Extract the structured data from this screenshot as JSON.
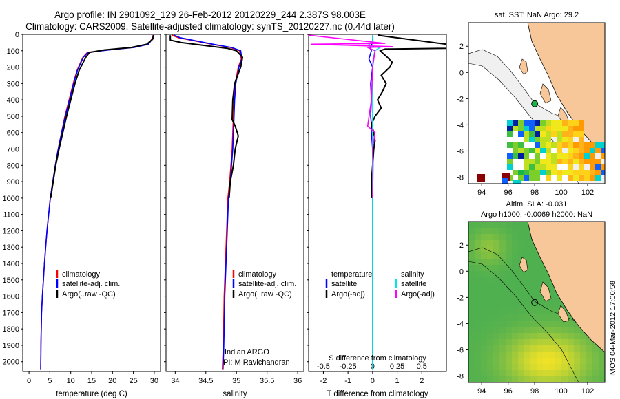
{
  "title": {
    "line1": "Argo profile: IN 2901092_129 26-Feb-2012 20120229_244 2.387S 98.003E",
    "line2": "Climatology: CARS2009. Satellite-adjusted climatology: synTS_20120227.nc (0.44d later)"
  },
  "colors": {
    "climatology": "#ff0000",
    "satellite": "#0000ff",
    "argo": "#000000",
    "salinity_satellite": "#00e5e5",
    "salinity_argo": "#ff00ff",
    "land": "#f7c79a",
    "bathy": "#f0f0f0",
    "ocean_sla": "#4fb04f"
  },
  "stamp": "IMOS 04-Mar-2012 17:00:58",
  "chart_data": [
    {
      "id": "temperature",
      "type": "line",
      "xlabel": "temperature (deg C)",
      "ylabel": "",
      "xlim": [
        -1.5,
        31.5
      ],
      "ylim": [
        2060,
        0
      ],
      "xticks": [
        "0",
        "5",
        "10",
        "15",
        "20",
        "25",
        "30"
      ],
      "yticks": [
        "0",
        "100",
        "200",
        "300",
        "400",
        "500",
        "600",
        "700",
        "800",
        "900",
        "1000",
        "1100",
        "1200",
        "1300",
        "1400",
        "1500",
        "1600",
        "1700",
        "1800",
        "1900",
        "2000"
      ],
      "legend": [
        "climatology",
        "satellite-adj. clim.",
        "Argo(..raw -QC)"
      ],
      "series": [
        {
          "name": "climatology",
          "color": "#ff0000",
          "x": [
            29.7,
            29.4,
            28.5,
            25,
            19,
            14,
            12.9,
            12.2,
            11.5,
            10.6,
            9.6,
            8.6,
            7.8,
            7,
            6.3,
            5.7,
            5.1,
            4.7,
            4.3,
            4,
            3.7,
            3.45,
            3.2,
            3,
            2.85,
            2.8
          ],
          "y": [
            5,
            30,
            60,
            80,
            95,
            110,
            140,
            180,
            220,
            300,
            400,
            500,
            600,
            700,
            800,
            900,
            1000,
            1100,
            1200,
            1300,
            1400,
            1500,
            1600,
            1700,
            1900,
            2050
          ]
        },
        {
          "name": "satellite-adj. clim.",
          "color": "#0000ff",
          "x": [
            29.8,
            29.5,
            28.6,
            25.2,
            19.2,
            14.2,
            13,
            12.3,
            11.6,
            10.7,
            9.7,
            8.7,
            7.8,
            7,
            6.3,
            5.7,
            5.1,
            4.7,
            4.3,
            4,
            3.7,
            3.45,
            3.2,
            3,
            2.85,
            2.8
          ],
          "y": [
            5,
            30,
            60,
            80,
            95,
            110,
            140,
            180,
            220,
            300,
            400,
            500,
            600,
            700,
            800,
            900,
            1000,
            1100,
            1200,
            1300,
            1400,
            1500,
            1600,
            1700,
            1900,
            2050
          ]
        },
        {
          "name": "Argo(..raw -QC)",
          "color": "#000000",
          "x": [
            29.9,
            29.6,
            28.2,
            24.5,
            18,
            14.5,
            13.6,
            12.8,
            12,
            11,
            10,
            9,
            8.1,
            7.2,
            6.4,
            5.8,
            5.2
          ],
          "y": [
            5,
            30,
            60,
            80,
            95,
            110,
            140,
            180,
            220,
            300,
            400,
            500,
            600,
            700,
            800,
            900,
            1000
          ]
        }
      ]
    },
    {
      "id": "salinity",
      "type": "line",
      "xlabel": "salinity",
      "ylabel": "",
      "xlim": [
        33.85,
        36.1
      ],
      "ylim": [
        2060,
        0
      ],
      "xticks": [
        "34",
        "34.5",
        "35",
        "35.5",
        "36"
      ],
      "legend": [
        "climatology",
        "satellite-adj. clim.",
        "Argo(..raw -QC)"
      ],
      "annotation": [
        "Indian ARGO",
        "PI: M Ravichandran"
      ],
      "series": [
        {
          "name": "climatology",
          "color": "#ff0000",
          "x": [
            33.95,
            34.05,
            34.6,
            34.9,
            35.05,
            35.08,
            35.03,
            34.98,
            34.96,
            34.95,
            34.94,
            34.93,
            34.91,
            34.89,
            34.86,
            34.84,
            34.82,
            34.8,
            34.79,
            34.78,
            34.77
          ],
          "y": [
            5,
            20,
            60,
            80,
            100,
            150,
            200,
            300,
            400,
            500,
            600,
            700,
            800,
            900,
            1000,
            1200,
            1400,
            1600,
            1800,
            1950,
            2050
          ]
        },
        {
          "name": "satellite-adj. clim.",
          "color": "#0000ff",
          "x": [
            33.98,
            34.08,
            34.62,
            34.92,
            35.07,
            35.09,
            35.04,
            34.99,
            34.97,
            34.96,
            34.95,
            34.94,
            34.92,
            34.9,
            34.87,
            34.85,
            34.83,
            34.81,
            34.8,
            34.79,
            34.78
          ],
          "y": [
            5,
            20,
            60,
            80,
            100,
            150,
            200,
            300,
            400,
            500,
            600,
            700,
            800,
            900,
            1000,
            1200,
            1400,
            1600,
            1800,
            1950,
            2050
          ]
        },
        {
          "name": "Argo(..raw -QC)",
          "color": "#000000",
          "x": [
            33.92,
            33.92,
            34.1,
            34.85,
            35.0,
            35.1,
            35.07,
            34.97,
            34.94,
            34.93,
            34.98,
            35.03,
            34.98,
            34.95,
            34.9,
            34.88
          ],
          "y": [
            5,
            35,
            50,
            85,
            100,
            140,
            200,
            300,
            400,
            520,
            560,
            620,
            700,
            800,
            900,
            1000
          ]
        }
      ]
    },
    {
      "id": "difference",
      "type": "line",
      "xlabel": "T difference from climatology",
      "ylabel": "",
      "x2label": "S difference from climatology",
      "xlim": [
        -2.6,
        3.0
      ],
      "ylim": [
        2060,
        0
      ],
      "xticks": [
        "-2",
        "-1",
        "0",
        "1",
        "2"
      ],
      "x2ticks": [
        "-0.5",
        "-0.25",
        "0",
        "0.25",
        "0.5"
      ],
      "legend_groups": [
        {
          "title": "temperature",
          "entries": [
            "satellite",
            "Argo(-adj)"
          ]
        },
        {
          "title": "salinity",
          "entries": [
            "satellite",
            "Argo(-adj)"
          ]
        }
      ],
      "series": [
        {
          "name": "temperature satellite",
          "color": "#0000ff",
          "x": [
            0,
            0,
            -0.05,
            -0.1,
            -0.05,
            -0.15,
            0,
            -0.08,
            -0.05,
            -0.08,
            -0.05,
            -0.05,
            0,
            0,
            0,
            0,
            0,
            0,
            0,
            0,
            0,
            0,
            0
          ],
          "y": [
            5,
            40,
            70,
            85,
            100,
            150,
            200,
            300,
            400,
            500,
            550,
            600,
            700,
            800,
            900,
            1000,
            1200,
            1400,
            1600,
            1800,
            1900,
            2000,
            2050
          ]
        },
        {
          "name": "temperature Argo(-adj)",
          "color": "#000000",
          "x": [
            0.2,
            3.0,
            3.0,
            0.5,
            0.3,
            0.6,
            0.8,
            0.7,
            0.35,
            0.55,
            0.4,
            0.2,
            0.35,
            0.1,
            -0.05,
            0.05,
            0.1,
            0.05,
            0.0,
            -0.05,
            -0.02
          ],
          "y": [
            5,
            60,
            85,
            90,
            100,
            140,
            170,
            200,
            250,
            300,
            350,
            400,
            450,
            500,
            550,
            600,
            650,
            700,
            800,
            900,
            1000
          ]
        },
        {
          "name": "salinity satellite",
          "color": "#00e5e5",
          "x": [
            0,
            0,
            -0.2,
            0.3,
            0.1,
            0.02,
            0,
            0,
            0,
            0,
            0,
            0,
            0,
            0,
            0,
            0,
            0,
            0,
            0,
            0
          ],
          "y": [
            5,
            40,
            70,
            80,
            100,
            150,
            200,
            300,
            400,
            500,
            600,
            700,
            800,
            900,
            1000,
            1200,
            1500,
            1800,
            2000,
            2050
          ]
        },
        {
          "name": "salinity Argo(-adj)",
          "color": "#ff00ff",
          "x": [
            -2.6,
            0.5,
            -2.5,
            0.8,
            -0.2,
            0.1,
            0.0,
            -0.05,
            -0.2,
            0.1,
            0.05,
            0.0,
            0.02,
            0.0
          ],
          "y": [
            5,
            55,
            60,
            75,
            80,
            100,
            200,
            400,
            560,
            600,
            650,
            700,
            800,
            1000
          ]
        }
      ]
    },
    {
      "id": "map-sst",
      "type": "heatmap",
      "title": "sat. SST: NaN Argo: 29.2",
      "xticks": [
        "94",
        "96",
        "98",
        "100",
        "102"
      ],
      "yticks": [
        "2",
        "0",
        "-2",
        "-4",
        "-6",
        "-8"
      ],
      "xlim": [
        93,
        103.3
      ],
      "ylim": [
        -8.5,
        3.8
      ],
      "float_position": {
        "lon": 98.003,
        "lat": -2.387
      }
    },
    {
      "id": "map-sla",
      "type": "heatmap",
      "title": [
        "Altim. SLA: -0.031",
        "Argo h1000: -0.0069 h2000: NaN"
      ],
      "xticks": [
        "94",
        "96",
        "98",
        "100",
        "102"
      ],
      "yticks": [
        "2",
        "0",
        "-2",
        "-4",
        "-6",
        "-8"
      ],
      "xlim": [
        93,
        103.3
      ],
      "ylim": [
        -8.5,
        3.8
      ],
      "float_position": {
        "lon": 98.003,
        "lat": -2.387
      }
    }
  ]
}
